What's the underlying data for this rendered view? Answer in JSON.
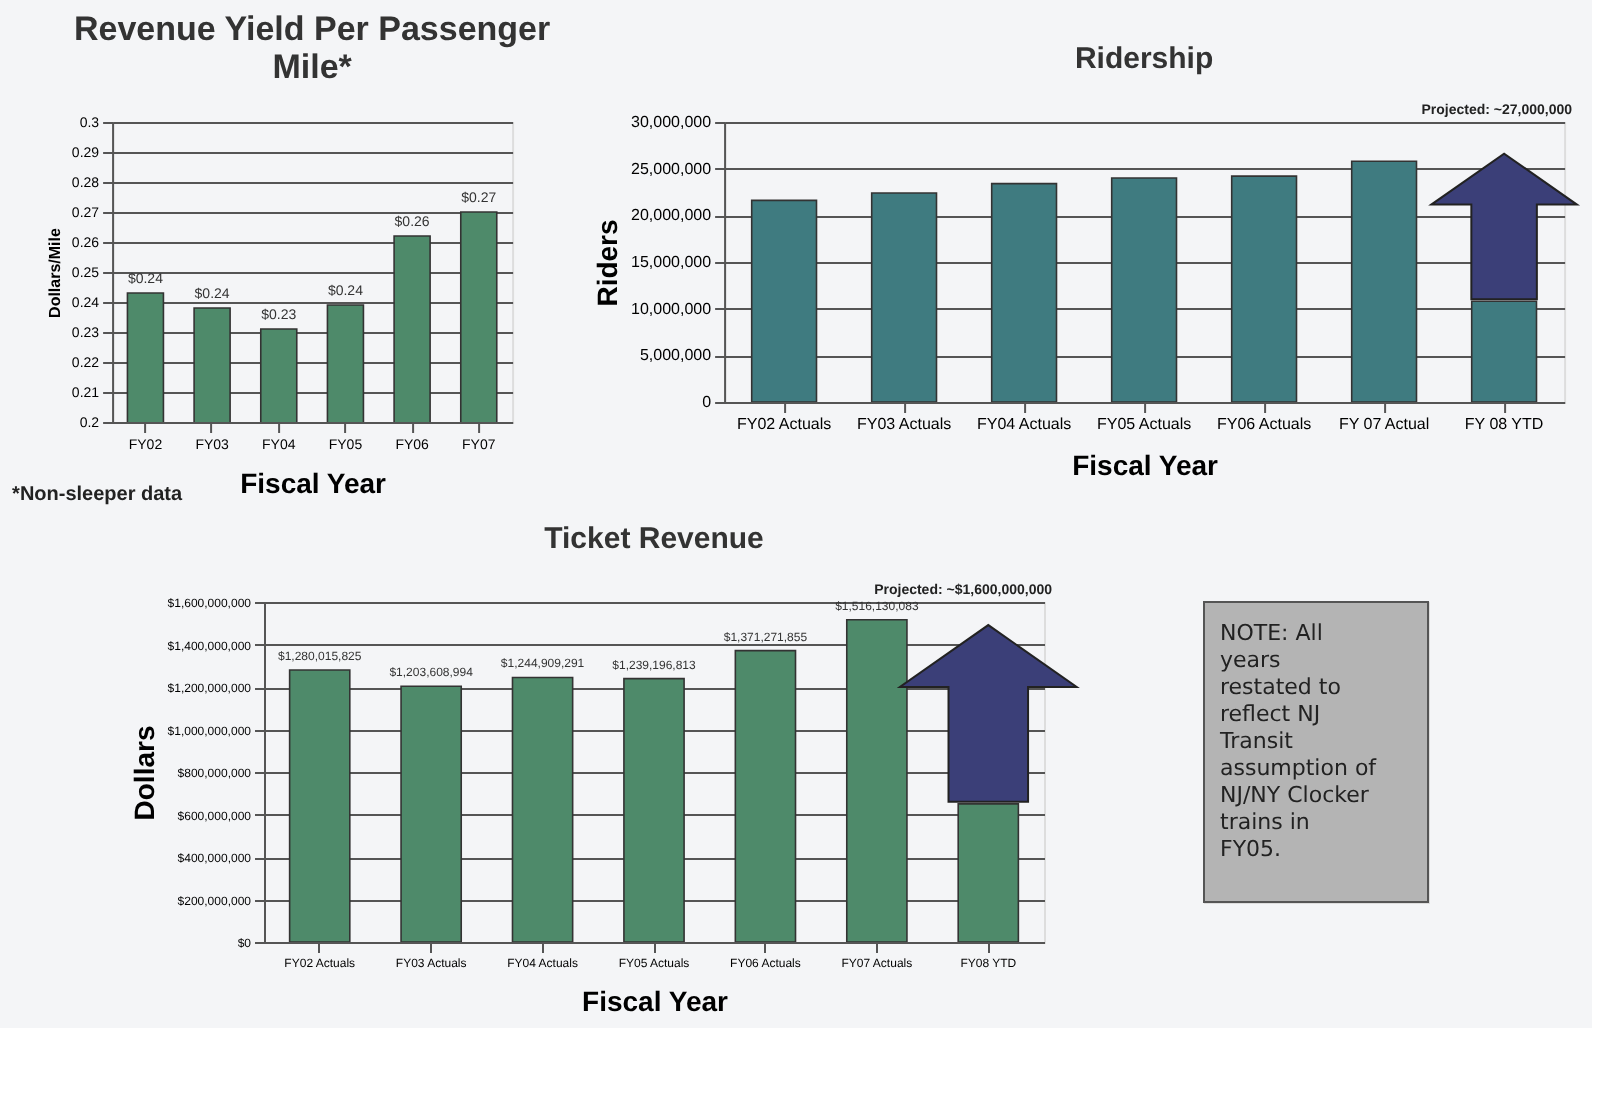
{
  "chart_data": [
    {
      "type": "bar",
      "title": "Revenue Yield Per Passenger Mile*",
      "xlabel": "Fiscal Year",
      "ylabel": "Dollars/Mile",
      "categories": [
        "FY02",
        "FY03",
        "FY04",
        "FY05",
        "FY06",
        "FY07"
      ],
      "values": [
        0.243,
        0.238,
        0.231,
        0.239,
        0.262,
        0.27
      ],
      "value_labels": [
        "$0.24",
        "$0.24",
        "$0.23",
        "$0.24",
        "$0.26",
        "$0.27"
      ],
      "color": "#4e8a6a",
      "ylim": [
        0.2,
        0.3
      ],
      "yticks": [
        0.2,
        0.21,
        0.22,
        0.23,
        0.24,
        0.25,
        0.26,
        0.27,
        0.28,
        0.29,
        0.3
      ],
      "grid": "y",
      "annotations": [
        "*Non-sleeper data"
      ]
    },
    {
      "type": "bar",
      "title": "Ridership",
      "xlabel": "Fiscal Year",
      "ylabel": "Riders",
      "categories": [
        "FY02 Actuals",
        "FY03 Actuals",
        "FY04 Actuals",
        "FY05 Actuals",
        "FY06 Actuals",
        "FY 07 Actual",
        "FY 08 YTD"
      ],
      "values": [
        21600000,
        22400000,
        23400000,
        24000000,
        24200000,
        25800000,
        10800000
      ],
      "color": "#3f7b80",
      "ylim": [
        0,
        30000000
      ],
      "yticks": [
        0,
        {
          "value": 5000000,
          "label": "5,000,000"
        },
        {
          "value": 10000000,
          "label": "10,000,000"
        },
        {
          "value": 15000000,
          "label": "15,000,000"
        },
        {
          "value": 20000000,
          "label": "20,000,000"
        },
        {
          "value": 25000000,
          "label": "25,000,000"
        },
        {
          "value": 30000000,
          "label": "30,000,000"
        }
      ],
      "grid": "y",
      "annotations": [
        "Projected: ~27,000,000"
      ]
    },
    {
      "type": "bar",
      "title": "Ticket Revenue",
      "xlabel": "Fiscal Year",
      "ylabel": "Dollars",
      "categories": [
        "FY02 Actuals",
        "FY03 Actuals",
        "FY04 Actuals",
        "FY05 Actuals",
        "FY06 Actuals",
        "FY07 Actuals",
        "FY08 YTD"
      ],
      "values": [
        1280015825,
        1203608994,
        1244909291,
        1239196813,
        1371271855,
        1516130083,
        650000000
      ],
      "value_labels": [
        "$1,280,015,825",
        "$1,203,608,994",
        "$1,244,909,291",
        "$1,239,196,813",
        "$1,371,271,855",
        "$1,516,130,083",
        null
      ],
      "color": "#4e8a6a",
      "ylim": [
        0,
        1600000000
      ],
      "yticks": [
        {
          "value": 0,
          "label": "$0"
        },
        {
          "value": 200000000,
          "label": "$200,000,000"
        },
        {
          "value": 400000000,
          "label": "$400,000,000"
        },
        {
          "value": 600000000,
          "label": "$600,000,000"
        },
        {
          "value": 800000000,
          "label": "$800,000,000"
        },
        {
          "value": 1000000000,
          "label": "$1,000,000,000"
        },
        {
          "value": 1200000000,
          "label": "$1,200,000,000"
        },
        {
          "value": 1400000000,
          "label": "$1,400,000,000"
        },
        {
          "value": 1600000000,
          "label": "$1,600,000,000"
        }
      ],
      "grid": "y",
      "annotations": [
        "Projected: ~$1,600,000,000"
      ]
    },
    {
      "type": "other",
      "annotations": [
        "NOTE: All years restated to reflect NJ Transit assumption of NJ/NY Clocker trains in FY05."
      ]
    }
  ]
}
